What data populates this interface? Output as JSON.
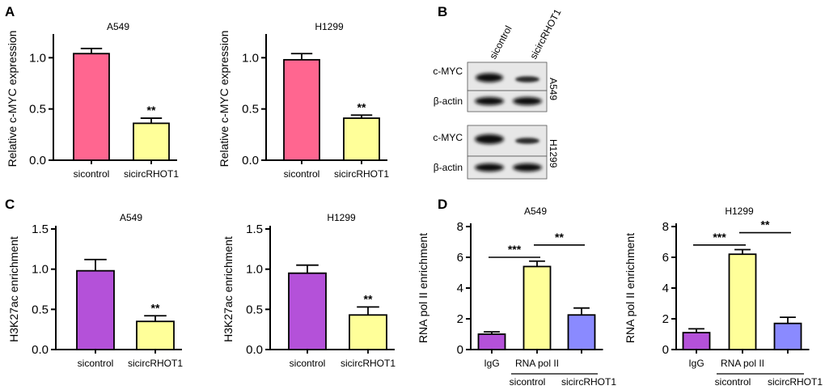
{
  "panels": [
    {
      "letter": "A"
    },
    {
      "letter": "B"
    },
    {
      "letter": "C"
    },
    {
      "letter": "D"
    }
  ],
  "colors": {
    "pink": "#ff6690",
    "yellow": "#ffff99",
    "purple": "#b451d9",
    "blue": "#8a8aff"
  },
  "chart_data": [
    {
      "type": "bar",
      "panel": "A",
      "title": "A549",
      "ylabel": "Relative c-MYC expression",
      "categories": [
        "sicontrol",
        "sicircRHOT1"
      ],
      "values": [
        1.04,
        0.36
      ],
      "errors": [
        0.05,
        0.05
      ],
      "colors": [
        "#ff6690",
        "#ffff99"
      ],
      "ylim": [
        0,
        1.2
      ],
      "yticks": [
        "0.0",
        "0.5",
        "1.0"
      ],
      "ytick_values": [
        0,
        0.5,
        1.0
      ],
      "significance": [
        {
          "bar": 1,
          "label": "**"
        }
      ]
    },
    {
      "type": "bar",
      "panel": "A",
      "title": "H1299",
      "ylabel": "Relative c-MYC expression",
      "categories": [
        "sicontrol",
        "sicircRHOT1"
      ],
      "values": [
        0.98,
        0.41
      ],
      "errors": [
        0.06,
        0.03
      ],
      "colors": [
        "#ff6690",
        "#ffff99"
      ],
      "ylim": [
        0,
        1.2
      ],
      "yticks": [
        "0.0",
        "0.5",
        "1.0"
      ],
      "ytick_values": [
        0,
        0.5,
        1.0
      ],
      "significance": [
        {
          "bar": 1,
          "label": "**"
        }
      ]
    },
    {
      "type": "bar",
      "panel": "C",
      "title": "A549",
      "ylabel": "H3K27ac enrichment",
      "categories": [
        "sicontrol",
        "sicircRHOT1"
      ],
      "values": [
        0.98,
        0.35
      ],
      "errors": [
        0.14,
        0.07
      ],
      "colors": [
        "#b451d9",
        "#ffff99"
      ],
      "ylim": [
        0,
        1.5
      ],
      "yticks": [
        "0.0",
        "0.5",
        "1.0",
        "1.5"
      ],
      "ytick_values": [
        0,
        0.5,
        1.0,
        1.5
      ],
      "significance": [
        {
          "bar": 1,
          "label": "**"
        }
      ]
    },
    {
      "type": "bar",
      "panel": "C",
      "title": "H1299",
      "ylabel": "H3K27ac enrichment",
      "categories": [
        "sicontrol",
        "sicircRHOT1"
      ],
      "values": [
        0.95,
        0.43
      ],
      "errors": [
        0.1,
        0.1
      ],
      "colors": [
        "#b451d9",
        "#ffff99"
      ],
      "ylim": [
        0,
        1.5
      ],
      "yticks": [
        "0.0",
        "0.5",
        "1.0",
        "1.5"
      ],
      "ytick_values": [
        0,
        0.5,
        1.0,
        1.5
      ],
      "significance": [
        {
          "bar": 1,
          "label": "**"
        }
      ]
    },
    {
      "type": "bar",
      "panel": "D",
      "title": "A549",
      "ylabel": "RNA pol II enrichment",
      "categories": [
        "IgG",
        "RNA pol II",
        ""
      ],
      "values": [
        1.0,
        5.4,
        2.25
      ],
      "errors": [
        0.15,
        0.35,
        0.45
      ],
      "colors": [
        "#b451d9",
        "#ffff99",
        "#8a8aff"
      ],
      "ylim": [
        0,
        8
      ],
      "yticks": [
        "0",
        "2",
        "4",
        "6",
        "8"
      ],
      "ytick_values": [
        0,
        2,
        4,
        6,
        8
      ],
      "group_labels": [
        "sicontrol",
        "sicircRHOT1"
      ],
      "brackets": [
        {
          "from": 0,
          "to": 1,
          "value": 6.0,
          "label": "***"
        },
        {
          "from": 1,
          "to": 2,
          "value": 6.8,
          "label": "**"
        }
      ]
    },
    {
      "type": "bar",
      "panel": "D",
      "title": "H1299",
      "ylabel": "RNA pol II enrichment",
      "categories": [
        "IgG",
        "RNA pol II",
        ""
      ],
      "values": [
        1.1,
        6.2,
        1.7
      ],
      "errors": [
        0.25,
        0.3,
        0.4
      ],
      "colors": [
        "#b451d9",
        "#ffff99",
        "#8a8aff"
      ],
      "ylim": [
        0,
        8
      ],
      "yticks": [
        "0",
        "2",
        "4",
        "6",
        "8"
      ],
      "ytick_values": [
        0,
        2,
        4,
        6,
        8
      ],
      "group_labels": [
        "sicontrol",
        "sicircRHOT1"
      ],
      "brackets": [
        {
          "from": 0,
          "to": 1,
          "value": 6.8,
          "label": "***"
        },
        {
          "from": 1,
          "to": 2,
          "value": 7.6,
          "label": "**"
        }
      ]
    }
  ],
  "western": {
    "columns": [
      "sicontrol",
      "sicircRHOT1"
    ],
    "blocks": [
      {
        "cell_line": "A549",
        "rows": [
          "c-MYC",
          "β-actin"
        ]
      },
      {
        "cell_line": "H1299",
        "rows": [
          "c-MYC",
          "β-actin"
        ]
      }
    ]
  }
}
